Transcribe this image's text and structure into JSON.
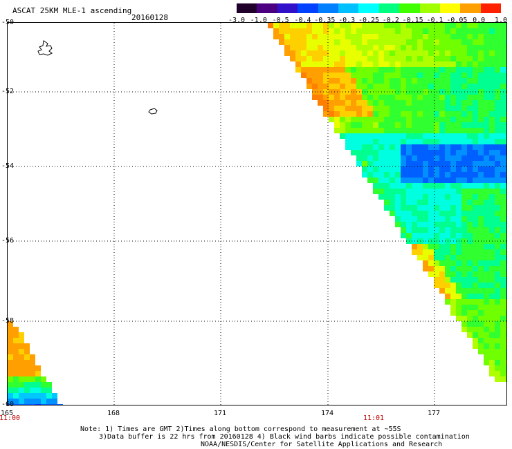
{
  "header": {
    "title": "ASCAT 25KM MLE-1 ascending",
    "date": "20160128"
  },
  "colorbar": {
    "labels": [
      "-3.0",
      "-1.0",
      "-0.5",
      "-0.4",
      "-0.35",
      "-0.3",
      "-0.25",
      "-0.2",
      "-0.15",
      "-0.1",
      "-0.05",
      "0.0",
      "1.0"
    ],
    "colors": [
      "#20002a",
      "#4a0080",
      "#3010c8",
      "#0040ff",
      "#0080ff",
      "#00c0ff",
      "#00ffff",
      "#00ff80",
      "#40ff00",
      "#a0ff00",
      "#ffff00",
      "#ffa000",
      "#ff2000"
    ]
  },
  "map": {
    "lat_labels": [
      "-50",
      "-52",
      "-54",
      "-56",
      "-58",
      "-60"
    ],
    "lon_labels": [
      "165",
      "168",
      "171",
      "174",
      "177"
    ],
    "time_labels": [
      "11:00",
      "11:01"
    ],
    "lat_range": [
      -60,
      -50
    ],
    "lon_range": [
      165,
      179.2
    ],
    "grid": true
  },
  "notes": [
    "Note: 1) Times are GMT 2)Times along bottom correspond to measurement at ~55S",
    "3)Data buffer is 22 hrs from 20160128 4) Black wind barbs indicate possible contamination",
    "NOAA/NESDIS/Center for Satellite Applications and Research"
  ]
}
